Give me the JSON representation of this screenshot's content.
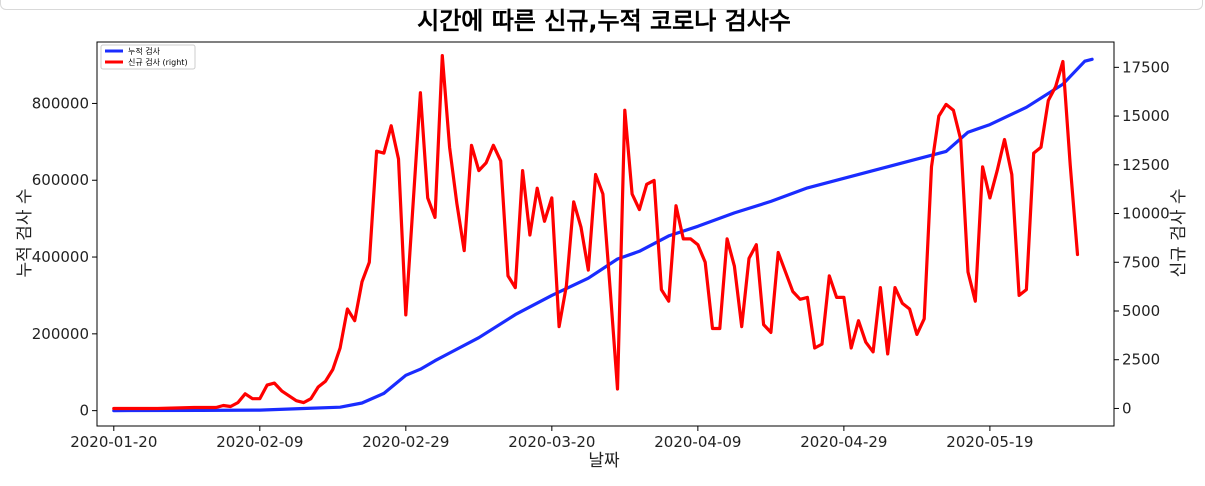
{
  "chart_data": {
    "type": "line",
    "title": "시간에 따른 신규,누적 코로나 검사수",
    "xlabel": "날짜",
    "ylabel": "누적 검사 수",
    "y2label": "신규 검사 수",
    "x_start": "2020-01-20",
    "x_end": "2020-06-01",
    "x_ticks": [
      "2020-01-20",
      "2020-02-09",
      "2020-02-29",
      "2020-03-20",
      "2020-04-09",
      "2020-04-29",
      "2020-05-19"
    ],
    "ylim": [
      -40000,
      960000
    ],
    "y_ticks": [
      0,
      200000,
      400000,
      600000,
      800000
    ],
    "y_tick_labels": [
      "0",
      "200000",
      "400000",
      "600000",
      "800000"
    ],
    "y2lim": [
      -900,
      18800
    ],
    "y2_ticks": [
      0,
      2500,
      5000,
      7500,
      10000,
      12500,
      15000,
      17500
    ],
    "y2_tick_labels": [
      "0",
      "2500",
      "5000",
      "7500",
      "10000",
      "12500",
      "15000",
      "17500"
    ],
    "legend_position": "top-left",
    "grid": false,
    "series": [
      {
        "name": "누적 검사",
        "axis": "left",
        "color": "#1a2cff",
        "points": [
          [
            "2020-01-20",
            0
          ],
          [
            "2020-02-01",
            500
          ],
          [
            "2020-02-09",
            1500
          ],
          [
            "2020-02-15",
            5500
          ],
          [
            "2020-02-20",
            9000
          ],
          [
            "2020-02-23",
            20000
          ],
          [
            "2020-02-26",
            45000
          ],
          [
            "2020-02-29",
            92000
          ],
          [
            "2020-03-02",
            108000
          ],
          [
            "2020-03-04",
            130000
          ],
          [
            "2020-03-06",
            150000
          ],
          [
            "2020-03-10",
            190000
          ],
          [
            "2020-03-15",
            250000
          ],
          [
            "2020-03-20",
            300000
          ],
          [
            "2020-03-25",
            345000
          ],
          [
            "2020-03-29",
            395000
          ],
          [
            "2020-04-01",
            415000
          ],
          [
            "2020-04-05",
            455000
          ],
          [
            "2020-04-09",
            480000
          ],
          [
            "2020-04-14",
            515000
          ],
          [
            "2020-04-19",
            545000
          ],
          [
            "2020-04-24",
            580000
          ],
          [
            "2020-04-29",
            605000
          ],
          [
            "2020-05-04",
            630000
          ],
          [
            "2020-05-09",
            655000
          ],
          [
            "2020-05-13",
            675000
          ],
          [
            "2020-05-16",
            725000
          ],
          [
            "2020-05-19",
            745000
          ],
          [
            "2020-05-24",
            790000
          ],
          [
            "2020-05-29",
            850000
          ],
          [
            "2020-06-01",
            910000
          ],
          [
            "2020-06-02",
            915000
          ]
        ]
      },
      {
        "name": "신규 검사 (right)",
        "axis": "right",
        "color": "#ff0000",
        "points": [
          [
            "2020-01-20",
            0
          ],
          [
            "2020-01-26",
            0
          ],
          [
            "2020-01-31",
            50
          ],
          [
            "2020-02-03",
            50
          ],
          [
            "2020-02-04",
            150
          ],
          [
            "2020-02-05",
            100
          ],
          [
            "2020-02-06",
            300
          ],
          [
            "2020-02-07",
            750
          ],
          [
            "2020-02-08",
            500
          ],
          [
            "2020-02-09",
            500
          ],
          [
            "2020-02-10",
            1200
          ],
          [
            "2020-02-11",
            1300
          ],
          [
            "2020-02-12",
            900
          ],
          [
            "2020-02-13",
            650
          ],
          [
            "2020-02-14",
            400
          ],
          [
            "2020-02-15",
            300
          ],
          [
            "2020-02-16",
            500
          ],
          [
            "2020-02-17",
            1100
          ],
          [
            "2020-02-18",
            1400
          ],
          [
            "2020-02-19",
            2000
          ],
          [
            "2020-02-20",
            3100
          ],
          [
            "2020-02-21",
            5100
          ],
          [
            "2020-02-22",
            4500
          ],
          [
            "2020-02-23",
            6500
          ],
          [
            "2020-02-24",
            7500
          ],
          [
            "2020-02-25",
            13200
          ],
          [
            "2020-02-26",
            13100
          ],
          [
            "2020-02-27",
            14500
          ],
          [
            "2020-02-28",
            12800
          ],
          [
            "2020-02-29",
            4800
          ],
          [
            "2020-03-01",
            10500
          ],
          [
            "2020-03-02",
            16200
          ],
          [
            "2020-03-03",
            10800
          ],
          [
            "2020-03-04",
            9800
          ],
          [
            "2020-03-05",
            18100
          ],
          [
            "2020-03-06",
            13400
          ],
          [
            "2020-03-07",
            10500
          ],
          [
            "2020-03-08",
            8100
          ],
          [
            "2020-03-09",
            13500
          ],
          [
            "2020-03-10",
            12200
          ],
          [
            "2020-03-11",
            12600
          ],
          [
            "2020-03-12",
            13500
          ],
          [
            "2020-03-13",
            12700
          ],
          [
            "2020-03-14",
            6800
          ],
          [
            "2020-03-15",
            6200
          ],
          [
            "2020-03-16",
            12200
          ],
          [
            "2020-03-17",
            8900
          ],
          [
            "2020-03-18",
            11300
          ],
          [
            "2020-03-19",
            9600
          ],
          [
            "2020-03-20",
            10800
          ],
          [
            "2020-03-21",
            4200
          ],
          [
            "2020-03-22",
            6300
          ],
          [
            "2020-03-23",
            10600
          ],
          [
            "2020-03-24",
            9300
          ],
          [
            "2020-03-25",
            7100
          ],
          [
            "2020-03-26",
            12000
          ],
          [
            "2020-03-27",
            11000
          ],
          [
            "2020-03-28",
            6100
          ],
          [
            "2020-03-29",
            1000
          ],
          [
            "2020-03-30",
            15300
          ],
          [
            "2020-03-31",
            11000
          ],
          [
            "2020-04-01",
            10200
          ],
          [
            "2020-04-02",
            11500
          ],
          [
            "2020-04-03",
            11700
          ],
          [
            "2020-04-04",
            6100
          ],
          [
            "2020-04-05",
            5500
          ],
          [
            "2020-04-06",
            10400
          ],
          [
            "2020-04-07",
            8700
          ],
          [
            "2020-04-08",
            8700
          ],
          [
            "2020-04-09",
            8400
          ],
          [
            "2020-04-10",
            7500
          ],
          [
            "2020-04-11",
            4100
          ],
          [
            "2020-04-12",
            4100
          ],
          [
            "2020-04-13",
            8700
          ],
          [
            "2020-04-14",
            7300
          ],
          [
            "2020-04-15",
            4200
          ],
          [
            "2020-04-16",
            7700
          ],
          [
            "2020-04-17",
            8400
          ],
          [
            "2020-04-18",
            4300
          ],
          [
            "2020-04-19",
            3900
          ],
          [
            "2020-04-20",
            8000
          ],
          [
            "2020-04-21",
            7000
          ],
          [
            "2020-04-22",
            6000
          ],
          [
            "2020-04-23",
            5600
          ],
          [
            "2020-04-24",
            5700
          ],
          [
            "2020-04-25",
            3100
          ],
          [
            "2020-04-26",
            3300
          ],
          [
            "2020-04-27",
            6800
          ],
          [
            "2020-04-28",
            5700
          ],
          [
            "2020-04-29",
            5700
          ],
          [
            "2020-04-30",
            3100
          ],
          [
            "2020-05-01",
            4500
          ],
          [
            "2020-05-02",
            3400
          ],
          [
            "2020-05-03",
            2900
          ],
          [
            "2020-05-04",
            6200
          ],
          [
            "2020-05-05",
            2800
          ],
          [
            "2020-05-06",
            6200
          ],
          [
            "2020-05-07",
            5400
          ],
          [
            "2020-05-08",
            5100
          ],
          [
            "2020-05-09",
            3800
          ],
          [
            "2020-05-10",
            4600
          ],
          [
            "2020-05-11",
            12400
          ],
          [
            "2020-05-12",
            15000
          ],
          [
            "2020-05-13",
            15600
          ],
          [
            "2020-05-14",
            15300
          ],
          [
            "2020-05-15",
            13800
          ],
          [
            "2020-05-16",
            7000
          ],
          [
            "2020-05-17",
            5500
          ],
          [
            "2020-05-18",
            12400
          ],
          [
            "2020-05-19",
            10800
          ],
          [
            "2020-05-20",
            12200
          ],
          [
            "2020-05-21",
            13800
          ],
          [
            "2020-05-22",
            12000
          ],
          [
            "2020-05-23",
            5800
          ],
          [
            "2020-05-24",
            6100
          ],
          [
            "2020-05-25",
            13100
          ],
          [
            "2020-05-26",
            13400
          ],
          [
            "2020-05-27",
            15800
          ],
          [
            "2020-05-28",
            16500
          ],
          [
            "2020-05-29",
            17800
          ],
          [
            "2020-05-30",
            12500
          ],
          [
            "2020-05-31",
            7900
          ]
        ]
      }
    ]
  }
}
